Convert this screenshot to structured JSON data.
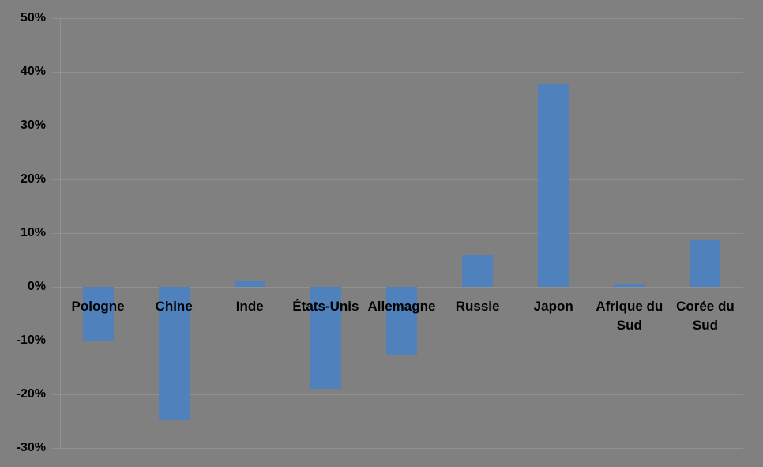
{
  "chart_data": {
    "type": "bar",
    "title": "",
    "xlabel": "",
    "ylabel": "",
    "categories": [
      "Pologne",
      "Chine",
      "Inde",
      "États-Unis",
      "Allemagne",
      "Russie",
      "Japon",
      "Afrique du Sud",
      "Corée du Sud"
    ],
    "values": [
      -10.2,
      -24.7,
      1.0,
      -18.9,
      -12.7,
      5.9,
      37.8,
      0.6,
      8.7
    ],
    "unit": "%",
    "ylim": [
      -30,
      50
    ],
    "ytick_step": 10,
    "ytick_labels": [
      "50%",
      "40%",
      "30%",
      "20%",
      "10%",
      "0%",
      "-10%",
      "-20%",
      "-30%"
    ],
    "grid": true,
    "legend": false,
    "category_axis_position": "zero-line",
    "colors": {
      "background": "#808080",
      "bar": "#4f81bd",
      "gridline": "#919191",
      "axis_line": "#919191",
      "label_text": "#000000"
    }
  }
}
